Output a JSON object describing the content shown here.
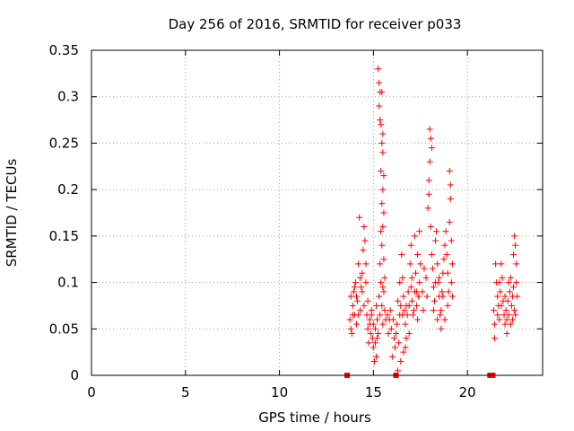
{
  "chart_data": {
    "type": "scatter",
    "title": "Day 256 of 2016, SRMTID for receiver p033",
    "xlabel": "GPS time / hours",
    "ylabel": "SRMTID / TECUs",
    "xlim": [
      0,
      24
    ],
    "ylim": [
      0,
      0.35
    ],
    "xticks": [
      0,
      5,
      10,
      15,
      20
    ],
    "xtick_labels": [
      "0",
      "5",
      "10",
      "15",
      "20"
    ],
    "yticks": [
      0,
      0.05,
      0.1,
      0.15,
      0.2,
      0.25,
      0.3,
      0.35
    ],
    "ytick_labels": [
      "0",
      "0.05",
      "0.1",
      "0.15",
      "0.2",
      "0.25",
      "0.3",
      "0.35"
    ],
    "grid": true,
    "legend": "none",
    "marker_color": "#ff0000",
    "marker": "plus",
    "zero_markers": [
      13.6,
      16.2,
      21.2,
      21.35
    ],
    "series": [
      {
        "points": [
          [
            13.75,
            0.06
          ],
          [
            13.8,
            0.085
          ],
          [
            13.85,
            0.045
          ],
          [
            13.9,
            0.075
          ],
          [
            13.95,
            0.09
          ],
          [
            14.0,
            0.065
          ],
          [
            14.05,
            0.1
          ],
          [
            14.1,
            0.055
          ],
          [
            14.15,
            0.08
          ],
          [
            14.2,
            0.12
          ],
          [
            14.25,
            0.17
          ],
          [
            14.3,
            0.07
          ],
          [
            14.35,
            0.095
          ],
          [
            14.4,
            0.11
          ],
          [
            14.45,
            0.135
          ],
          [
            14.5,
            0.16
          ],
          [
            14.55,
            0.145
          ],
          [
            14.6,
            0.1
          ],
          [
            14.65,
            0.065
          ],
          [
            14.7,
            0.05
          ],
          [
            14.75,
            0.035
          ],
          [
            14.8,
            0.06
          ],
          [
            14.85,
            0.045
          ],
          [
            14.9,
            0.07
          ],
          [
            14.95,
            0.04
          ],
          [
            15.0,
            0.03
          ],
          [
            15.05,
            0.015
          ],
          [
            15.1,
            0.05
          ],
          [
            15.15,
            0.02
          ],
          [
            15.2,
            0.06
          ],
          [
            13.8,
            0.05
          ],
          [
            13.9,
            0.065
          ],
          [
            14.0,
            0.095
          ],
          [
            14.1,
            0.085
          ],
          [
            14.2,
            0.065
          ],
          [
            14.3,
            0.105
          ],
          [
            14.4,
            0.09
          ],
          [
            14.5,
            0.075
          ],
          [
            14.6,
            0.12
          ],
          [
            14.7,
            0.08
          ],
          [
            14.8,
            0.055
          ],
          [
            14.9,
            0.065
          ],
          [
            15.0,
            0.055
          ],
          [
            15.1,
            0.035
          ],
          [
            15.2,
            0.04
          ],
          [
            15.15,
            0.075
          ],
          [
            15.25,
            0.045
          ],
          [
            15.25,
            0.33
          ],
          [
            15.3,
            0.315
          ],
          [
            15.35,
            0.305
          ],
          [
            15.3,
            0.29
          ],
          [
            15.35,
            0.275
          ],
          [
            15.4,
            0.27
          ],
          [
            15.45,
            0.305
          ],
          [
            15.5,
            0.26
          ],
          [
            15.45,
            0.25
          ],
          [
            15.5,
            0.24
          ],
          [
            15.55,
            0.215
          ],
          [
            15.5,
            0.2
          ],
          [
            15.45,
            0.185
          ],
          [
            15.55,
            0.175
          ],
          [
            15.5,
            0.16
          ],
          [
            15.4,
            0.155
          ],
          [
            15.45,
            0.14
          ],
          [
            15.55,
            0.125
          ],
          [
            15.6,
            0.105
          ],
          [
            15.5,
            0.095
          ],
          [
            15.35,
            0.12
          ],
          [
            15.4,
            0.1
          ],
          [
            15.3,
            0.085
          ],
          [
            15.45,
            0.075
          ],
          [
            15.35,
            0.065
          ],
          [
            15.55,
            0.09
          ],
          [
            15.5,
            0.055
          ],
          [
            15.6,
            0.07
          ],
          [
            15.65,
            0.06
          ],
          [
            15.4,
            0.22
          ],
          [
            15.75,
            0.065
          ],
          [
            15.8,
            0.045
          ],
          [
            15.85,
            0.06
          ],
          [
            15.9,
            0.07
          ],
          [
            15.95,
            0.05
          ],
          [
            16.0,
            0.02
          ],
          [
            16.05,
            0.06
          ],
          [
            16.1,
            0.04
          ],
          [
            16.15,
            0.03
          ],
          [
            16.2,
            0.045
          ],
          [
            16.25,
            0.055
          ],
          [
            16.3,
            0.08
          ],
          [
            16.35,
            0.035
          ],
          [
            16.4,
            0.065
          ],
          [
            16.45,
            0.075
          ],
          [
            16.5,
            0.13
          ],
          [
            16.55,
            0.105
          ],
          [
            16.6,
            0.085
          ],
          [
            16.65,
            0.07
          ],
          [
            16.7,
            0.055
          ],
          [
            16.75,
            0.04
          ],
          [
            16.8,
            0.065
          ],
          [
            16.85,
            0.09
          ],
          [
            16.9,
            0.075
          ],
          [
            16.95,
            0.12
          ],
          [
            17.0,
            0.095
          ],
          [
            17.05,
            0.08
          ],
          [
            17.1,
            0.065
          ],
          [
            17.15,
            0.07
          ],
          [
            17.2,
            0.09
          ],
          [
            17.25,
            0.11
          ],
          [
            17.3,
            0.075
          ],
          [
            17.35,
            0.06
          ],
          [
            17.4,
            0.085
          ],
          [
            17.45,
            0.1
          ],
          [
            17.5,
            0.12
          ],
          [
            16.3,
            0.005
          ],
          [
            16.45,
            0.015
          ],
          [
            16.6,
            0.025
          ],
          [
            16.7,
            0.03
          ],
          [
            16.9,
            0.045
          ],
          [
            16.4,
            0.1
          ],
          [
            16.55,
            0.065
          ],
          [
            16.75,
            0.075
          ],
          [
            17.05,
            0.105
          ],
          [
            17.3,
            0.09
          ],
          [
            17.0,
            0.14
          ],
          [
            17.2,
            0.15
          ],
          [
            17.35,
            0.13
          ],
          [
            17.45,
            0.155
          ],
          [
            17.6,
            0.09
          ],
          [
            17.7,
            0.115
          ],
          [
            17.8,
            0.105
          ],
          [
            17.9,
            0.18
          ],
          [
            17.95,
            0.21
          ],
          [
            18.0,
            0.265
          ],
          [
            18.05,
            0.255
          ],
          [
            18.1,
            0.245
          ],
          [
            18.0,
            0.23
          ],
          [
            17.95,
            0.195
          ],
          [
            18.05,
            0.16
          ],
          [
            18.1,
            0.13
          ],
          [
            18.15,
            0.115
          ],
          [
            18.2,
            0.095
          ],
          [
            18.25,
            0.08
          ],
          [
            18.3,
            0.145
          ],
          [
            18.35,
            0.155
          ],
          [
            18.4,
            0.12
          ],
          [
            18.45,
            0.1
          ],
          [
            18.5,
            0.085
          ],
          [
            18.55,
            0.065
          ],
          [
            18.6,
            0.07
          ],
          [
            18.65,
            0.09
          ],
          [
            18.7,
            0.11
          ],
          [
            18.75,
            0.125
          ],
          [
            18.8,
            0.14
          ],
          [
            18.85,
            0.155
          ],
          [
            18.9,
            0.13
          ],
          [
            18.95,
            0.11
          ],
          [
            19.0,
            0.09
          ],
          [
            19.05,
            0.22
          ],
          [
            19.1,
            0.205
          ],
          [
            19.1,
            0.19
          ],
          [
            19.05,
            0.165
          ],
          [
            19.15,
            0.145
          ],
          [
            19.2,
            0.12
          ],
          [
            19.15,
            0.1
          ],
          [
            19.2,
            0.085
          ],
          [
            18.8,
            0.06
          ],
          [
            18.6,
            0.05
          ],
          [
            18.4,
            0.06
          ],
          [
            18.2,
            0.07
          ],
          [
            18.95,
            0.075
          ],
          [
            18.7,
            0.085
          ],
          [
            18.5,
            0.105
          ],
          [
            18.3,
            0.1
          ],
          [
            17.85,
            0.085
          ],
          [
            17.65,
            0.07
          ],
          [
            21.4,
            0.07
          ],
          [
            21.45,
            0.055
          ],
          [
            21.5,
            0.12
          ],
          [
            21.55,
            0.1
          ],
          [
            21.6,
            0.085
          ],
          [
            21.65,
            0.075
          ],
          [
            21.7,
            0.06
          ],
          [
            21.75,
            0.09
          ],
          [
            21.8,
            0.12
          ],
          [
            21.85,
            0.105
          ],
          [
            21.9,
            0.08
          ],
          [
            21.95,
            0.065
          ],
          [
            22.0,
            0.055
          ],
          [
            22.05,
            0.07
          ],
          [
            22.1,
            0.045
          ],
          [
            22.15,
            0.08
          ],
          [
            22.2,
            0.065
          ],
          [
            22.25,
            0.09
          ],
          [
            22.3,
            0.105
          ],
          [
            22.35,
            0.075
          ],
          [
            22.4,
            0.06
          ],
          [
            22.45,
            0.095
          ],
          [
            22.5,
            0.15
          ],
          [
            22.55,
            0.14
          ],
          [
            22.6,
            0.12
          ],
          [
            22.65,
            0.085
          ],
          [
            22.5,
            0.07
          ],
          [
            22.4,
            0.085
          ],
          [
            22.2,
            0.1
          ],
          [
            22.0,
            0.085
          ],
          [
            21.8,
            0.075
          ],
          [
            21.6,
            0.065
          ],
          [
            21.45,
            0.04
          ],
          [
            21.7,
            0.1
          ],
          [
            22.1,
            0.06
          ],
          [
            22.3,
            0.055
          ],
          [
            22.55,
            0.065
          ],
          [
            22.6,
            0.1
          ],
          [
            22.45,
            0.13
          ]
        ]
      }
    ]
  }
}
